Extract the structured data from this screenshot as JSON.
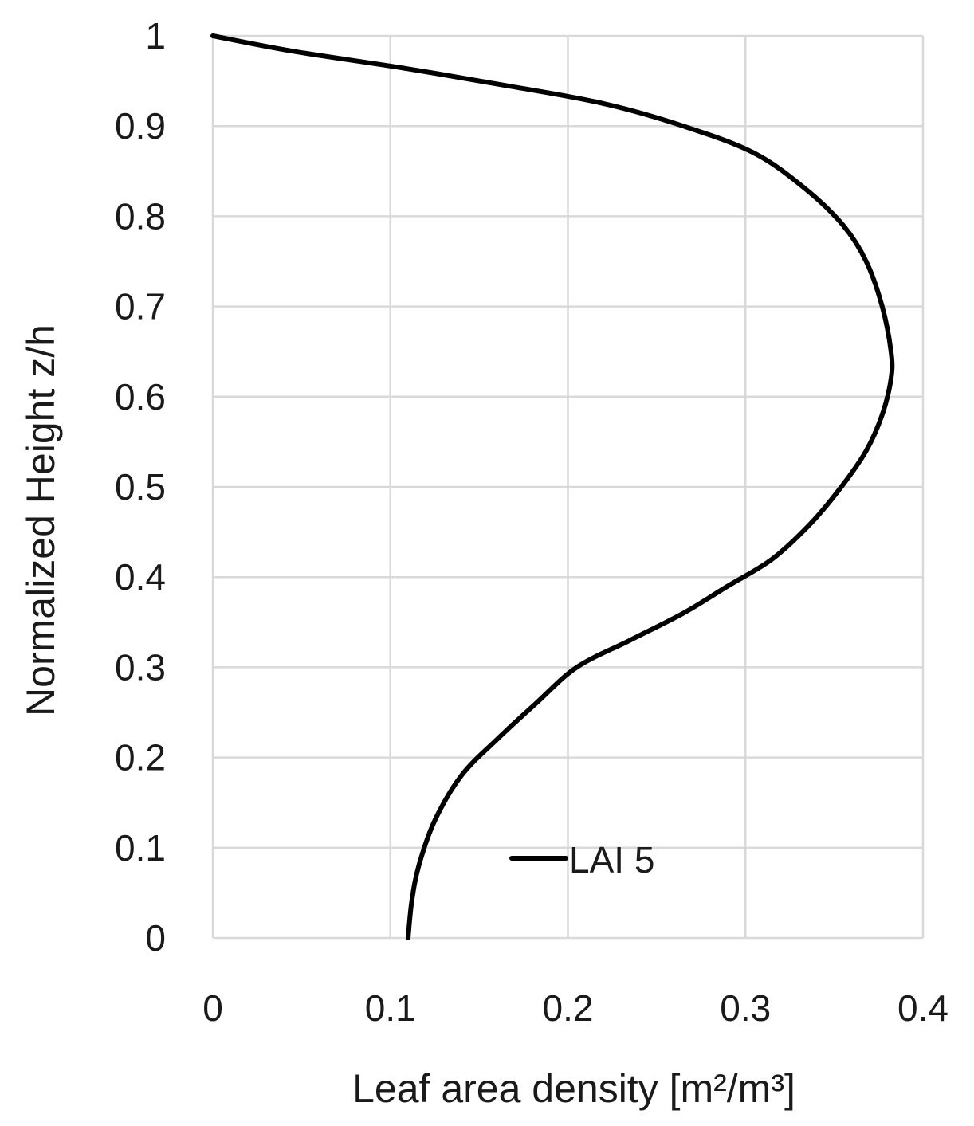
{
  "chart_data": {
    "type": "line",
    "title": "",
    "xlabel": "Leaf area density [m²/m³]",
    "ylabel": "Normalized Height z/h",
    "xlim": [
      0,
      0.4
    ],
    "ylim": [
      0,
      1
    ],
    "xticks": [
      0,
      0.1,
      0.2,
      0.3,
      0.4
    ],
    "xtick_labels": [
      "0",
      "0.1",
      "0.2",
      "0.3",
      "0.4"
    ],
    "yticks": [
      0,
      0.1,
      0.2,
      0.3,
      0.4,
      0.5,
      0.6,
      0.7,
      0.8,
      0.9,
      1
    ],
    "ytick_labels": [
      "0",
      "0.1",
      "0.2",
      "0.3",
      "0.4",
      "0.5",
      "0.6",
      "0.7",
      "0.8",
      "0.9",
      "1"
    ],
    "grid": true,
    "legend_position": "inside-bottom-center",
    "series": [
      {
        "name": "LAI 5",
        "color": "#000000",
        "x": [
          0.11,
          0.112,
          0.116,
          0.125,
          0.14,
          0.16,
          0.182,
          0.205,
          0.235,
          0.265,
          0.29,
          0.315,
          0.337,
          0.354,
          0.368,
          0.377,
          0.382,
          0.382,
          0.377,
          0.368,
          0.355,
          0.334,
          0.305,
          0.265,
          0.22,
          0.165,
          0.105,
          0.045,
          0.0
        ],
        "y": [
          0.0,
          0.04,
          0.08,
          0.13,
          0.18,
          0.22,
          0.26,
          0.3,
          0.33,
          0.36,
          0.39,
          0.42,
          0.46,
          0.5,
          0.54,
          0.58,
          0.62,
          0.65,
          0.7,
          0.75,
          0.79,
          0.83,
          0.87,
          0.9,
          0.925,
          0.945,
          0.965,
          0.983,
          1.0
        ]
      }
    ]
  }
}
